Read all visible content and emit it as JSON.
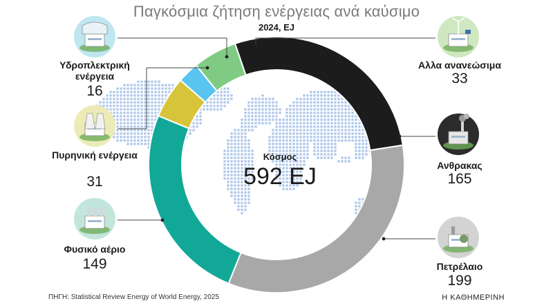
{
  "title": "Παγκόσμια ζήτηση ενέργειας ανά καύσιμο",
  "subtitle": "2024, EJ",
  "center": {
    "label": "Κόσμος",
    "value": "592 EJ"
  },
  "source": "ΠΗΓΗ: Statistical Review Energy of World Energy, 2025",
  "brand": "Η ΚΑΘΗΜΕΡΙΝΗ",
  "colors": {
    "coal": "#1c1c1c",
    "oil": "#a8a8a8",
    "gas": "#12a898",
    "nuclear": "#d8c43a",
    "hydro": "#58c4ef",
    "renewables": "#7fcb84",
    "map": "#a9c4e8",
    "icon_bg": "#cfe3c2",
    "leader": "#444444"
  },
  "chart_data": {
    "type": "pie",
    "title": "Παγκόσμια ζήτηση ενέργειας ανά καύσιμο",
    "subtitle": "2024, EJ",
    "unit": "EJ",
    "total": 592,
    "donut": true,
    "slices": [
      {
        "key": "coal",
        "label": "Ανθρακας",
        "value": 165,
        "icon": "coal-plant-icon"
      },
      {
        "key": "oil",
        "label": "Πετρέλαιο",
        "value": 199,
        "icon": "oil-refinery-icon"
      },
      {
        "key": "gas",
        "label": "Φυσικό αέριο",
        "value": 149,
        "icon": "gas-plant-icon"
      },
      {
        "key": "nuclear",
        "label": "Πυρηνική ενέργεια",
        "value": 31,
        "icon": "nuclear-plant-icon"
      },
      {
        "key": "hydro",
        "label": "Υδροπλεκτρική ενέργεια",
        "value": 16,
        "icon": "hydro-dam-icon"
      },
      {
        "key": "renewables",
        "label": "Αλλα ανανεώσιμα",
        "value": 33,
        "icon": "wind-turbine-icon"
      }
    ]
  }
}
